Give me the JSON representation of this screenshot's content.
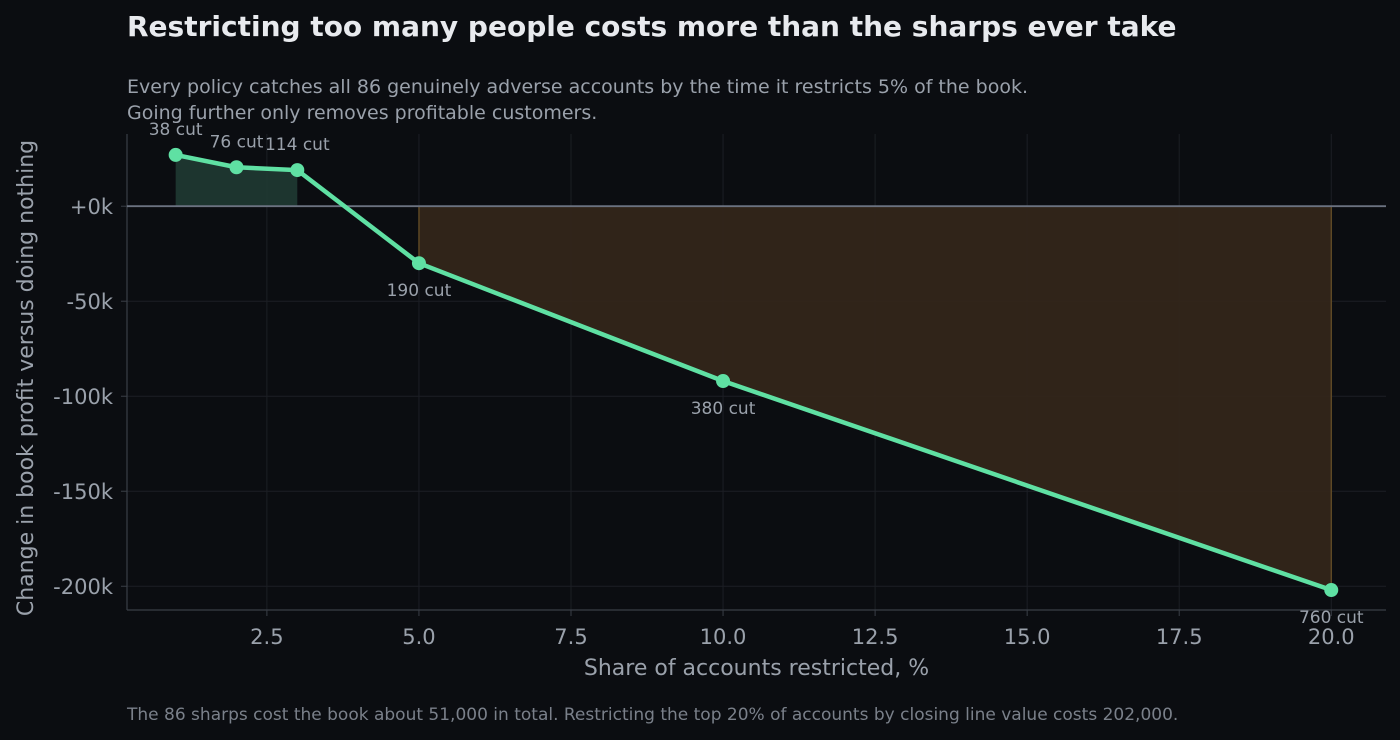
{
  "chart_data": {
    "type": "line",
    "title": "Restricting too many people costs more than the sharps ever take",
    "subtitle_lines": [
      "Every policy catches all 86 genuinely adverse accounts by the time it restricts 5% of the book.",
      "Going further only removes profitable customers."
    ],
    "xlabel": "Share of accounts restricted, %",
    "ylabel": "Change in book profit versus doing nothing",
    "xlim": [
      0.2,
      20.9
    ],
    "ylim": [
      -212500,
      38000
    ],
    "x_ticks": [
      2.5,
      5.0,
      7.5,
      10.0,
      12.5,
      15.0,
      17.5,
      20.0
    ],
    "x_tick_labels": [
      "2.5",
      "5.0",
      "7.5",
      "10.0",
      "12.5",
      "15.0",
      "17.5",
      "20.0"
    ],
    "y_ticks": [
      0,
      -50000,
      -100000,
      -150000,
      -200000
    ],
    "y_tick_labels": [
      "+0k",
      "-50k",
      "-100k",
      "-150k",
      "-200k"
    ],
    "grid": true,
    "series": [
      {
        "x": [
          1,
          2,
          3,
          5,
          10,
          20
        ],
        "y": [
          27000,
          20500,
          19000,
          -30000,
          -92000,
          -202000
        ],
        "point_labels": [
          "38 cut",
          "76 cut",
          "114 cut",
          "190 cut",
          "380 cut",
          "760 cut"
        ],
        "label_position": [
          "above",
          "above",
          "above",
          "below",
          "below",
          "below"
        ]
      }
    ],
    "colors": {
      "line": "#5fe0a3",
      "gain_fill": "#1f3a33",
      "loss_fill": "#33261a",
      "loss_edge": "#6a5227",
      "zero_line": "#6b7280",
      "grid": "#1c1f25",
      "axis": "#3a3f47"
    },
    "footnote": "The 86 sharps cost the book about 51,000 in total. Restricting the top 20% of accounts by closing line value costs 202,000."
  }
}
